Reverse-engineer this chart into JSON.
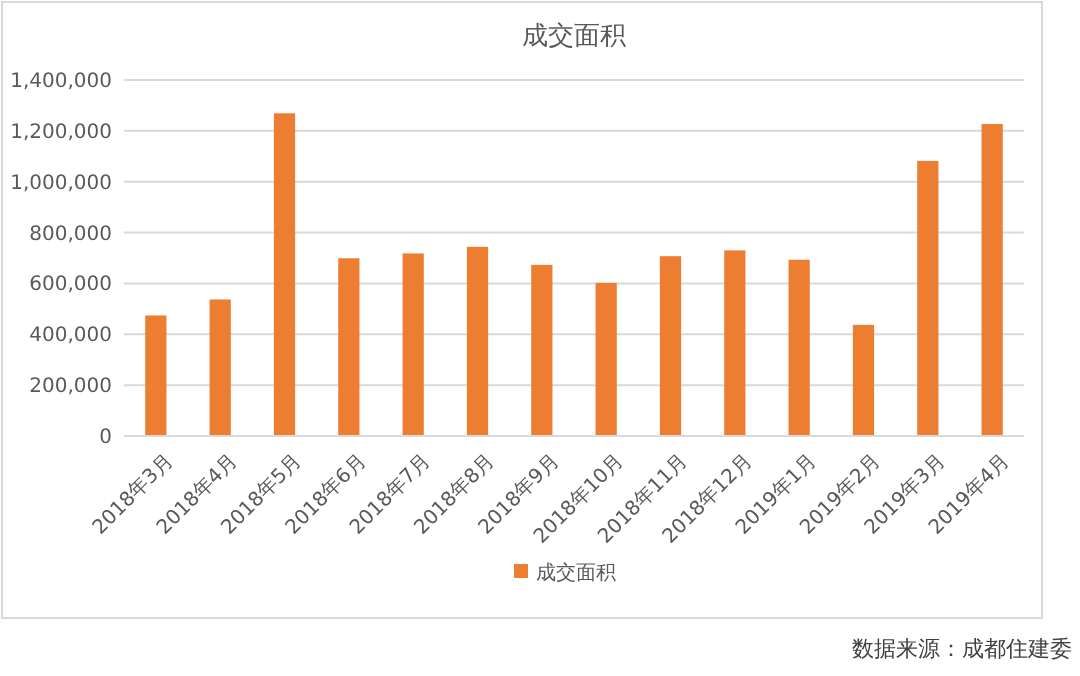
{
  "chart_data": {
    "type": "bar",
    "title": "成交面积",
    "categories": [
      "2018年3月",
      "2018年4月",
      "2018年5月",
      "2018年6月",
      "2018年7月",
      "2018年8月",
      "2018年9月",
      "2018年10月",
      "2018年11月",
      "2018年12月",
      "2019年1月",
      "2019年2月",
      "2019年3月",
      "2019年4月"
    ],
    "series": [
      {
        "name": "成交面积",
        "color": "#ed7d31",
        "values": [
          474000,
          537000,
          1269000,
          699000,
          718000,
          744000,
          673000,
          602000,
          707000,
          730000,
          693000,
          437000,
          1082000,
          1227000
        ]
      }
    ],
    "ylim": [
      0,
      1400000
    ],
    "yticks": [
      {
        "value": 0,
        "label": "0"
      },
      {
        "value": 200000,
        "label": "200,000"
      },
      {
        "value": 400000,
        "label": "400,000"
      },
      {
        "value": 600000,
        "label": "600,000"
      },
      {
        "value": 800000,
        "label": "800,000"
      },
      {
        "value": 1000000,
        "label": "1,000,000"
      },
      {
        "value": 1200000,
        "label": "1,200,000"
      },
      {
        "value": 1400000,
        "label": "1,400,000"
      }
    ],
    "grid": "y",
    "legend": "bottom",
    "annotations": [
      "数据来源：成都住建委"
    ]
  }
}
